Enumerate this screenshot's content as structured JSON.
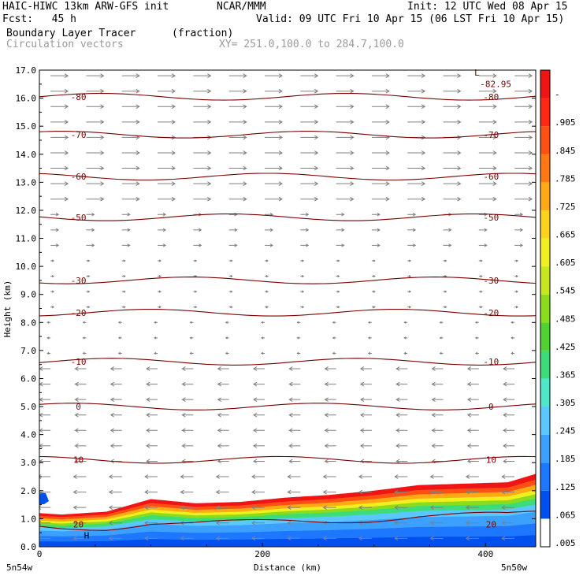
{
  "header": {
    "model": "HAIC-HIWC 13km ARW-GFS init",
    "org": "NCAR/MMM",
    "init": "Init: 12 UTC Wed 08 Apr 15",
    "fcst": "Fcst:   45 h",
    "valid": "Valid: 09 UTC Fri 10 Apr 15 (06 LST Fri 10 Apr 15)",
    "field": "Boundary Layer Tracer",
    "units": "(fraction)",
    "vectors": "Circulation vectors",
    "xy": "XY= 251.0,100.0 to 284.7,100.0"
  },
  "chart_data": {
    "type": "heatmap",
    "title": "Boundary Layer Tracer",
    "units": "(fraction)",
    "xlabel": "Distance (km)",
    "ylabel": "Height (km)",
    "xlim": [
      0,
      445
    ],
    "ylim": [
      0.0,
      17.0
    ],
    "x_ticks": [
      0,
      200,
      400
    ],
    "y_ticks": [
      "0.0",
      "1.0",
      "2.0",
      "3.0",
      "4.0",
      "5.0",
      "6.0",
      "7.0",
      "8.0",
      "9.0",
      "10.0",
      "11.0",
      "12.0",
      "13.0",
      "14.0",
      "15.0",
      "16.0",
      "17.0"
    ],
    "x_endpoint_labels": [
      "5n54w",
      "5n50w"
    ],
    "colorbar": {
      "labels": [
        ".005",
        ".065",
        ".125",
        ".185",
        ".245",
        ".305",
        ".365",
        ".425",
        ".485",
        ".545",
        ".605",
        ".665",
        ".725",
        ".785",
        ".845",
        ".905",
        "-"
      ],
      "colors": [
        "#ffffff",
        "#0050f0",
        "#1e78ff",
        "#3ca0ff",
        "#5ac8ff",
        "#50e6c8",
        "#3cdc78",
        "#50d232",
        "#8cdc1e",
        "#c8e61e",
        "#f0f01e",
        "#ffd21e",
        "#ffaa14",
        "#ff7814",
        "#ff5014",
        "#ff2814",
        "#f01414"
      ]
    },
    "tracer_top_km": [
      {
        "x": 0,
        "top": 1.2
      },
      {
        "x": 20,
        "top": 1.15
      },
      {
        "x": 60,
        "top": 1.25
      },
      {
        "x": 100,
        "top": 1.7
      },
      {
        "x": 140,
        "top": 1.55
      },
      {
        "x": 180,
        "top": 1.6
      },
      {
        "x": 220,
        "top": 1.75
      },
      {
        "x": 260,
        "top": 1.85
      },
      {
        "x": 300,
        "top": 2.0
      },
      {
        "x": 340,
        "top": 2.2
      },
      {
        "x": 380,
        "top": 2.25
      },
      {
        "x": 420,
        "top": 2.3
      },
      {
        "x": 445,
        "top": 2.6
      }
    ],
    "temperature_contours": [
      {
        "label": "-80",
        "y": 16.05
      },
      {
        "label": "-70",
        "y": 14.7
      },
      {
        "label": "-60",
        "y": 13.2
      },
      {
        "label": "-50",
        "y": 11.75
      },
      {
        "label": "-30",
        "y": 9.5
      },
      {
        "label": "-20",
        "y": 8.35
      },
      {
        "label": "-10",
        "y": 6.6
      },
      {
        "label": "0",
        "y": 5.0
      },
      {
        "label": "10",
        "y": 3.1
      },
      {
        "label": "20",
        "y": 0.8
      }
    ],
    "annotations": [
      {
        "text": "L",
        "x": 390,
        "y": 16.8
      },
      {
        "text": "-82.95",
        "x": 395,
        "y": 16.4
      },
      {
        "text": "H",
        "x": 40,
        "y": 0.3
      }
    ]
  }
}
